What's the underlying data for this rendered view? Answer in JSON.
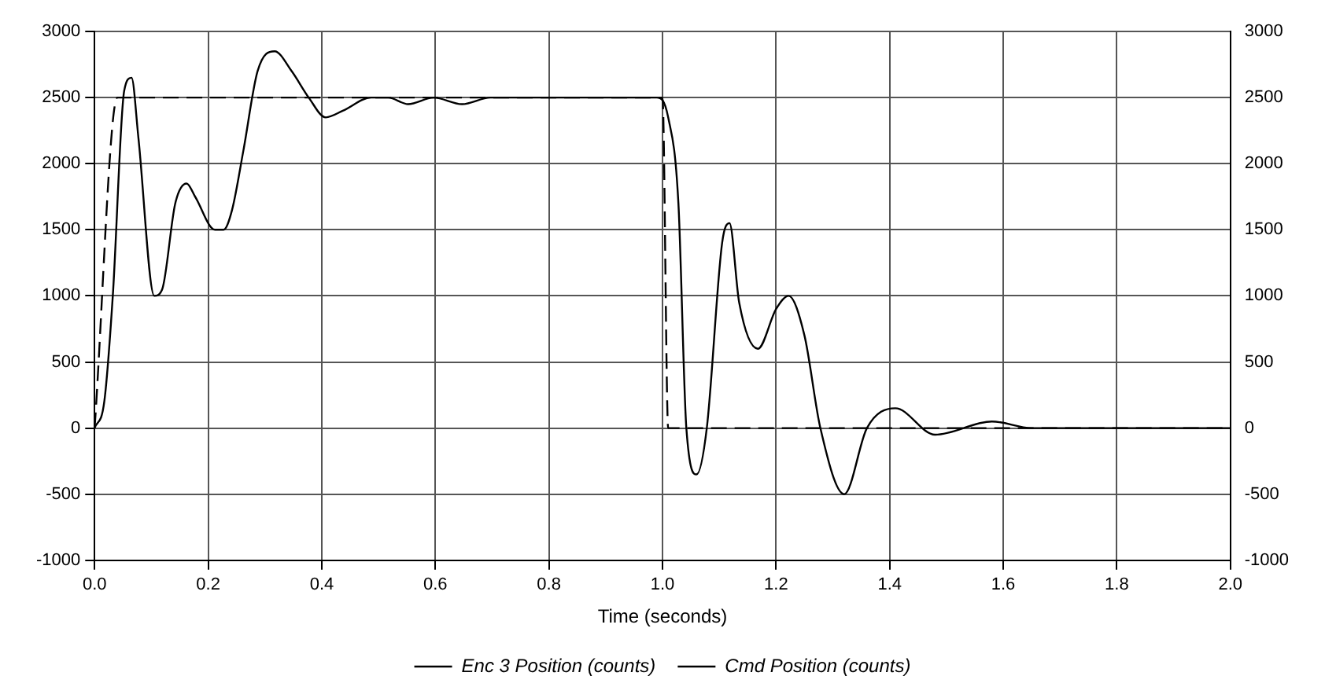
{
  "chart_data": {
    "type": "line",
    "xlabel": "Time (seconds)",
    "xlim": [
      0,
      2
    ],
    "xticks": [
      {
        "value": 0,
        "label": "0.0"
      },
      {
        "value": 0.2,
        "label": "0.2"
      },
      {
        "value": 0.4,
        "label": "0.4"
      },
      {
        "value": 0.6,
        "label": "0.6"
      },
      {
        "value": 0.8,
        "label": "0.8"
      },
      {
        "value": 1,
        "label": "1.0"
      },
      {
        "value": 1.2,
        "label": "1.2"
      },
      {
        "value": 1.4,
        "label": "1.4"
      },
      {
        "value": 1.6,
        "label": "1.6"
      },
      {
        "value": 1.8,
        "label": "1.8"
      },
      {
        "value": 2,
        "label": "2.0"
      }
    ],
    "ylim": [
      -1000,
      3000
    ],
    "yticks": [
      -1000,
      -500,
      0,
      500,
      1000,
      1500,
      2000,
      2500,
      3000
    ],
    "y2lim": [
      -1000,
      3000
    ],
    "y2ticks": [
      -1000,
      -500,
      0,
      500,
      1000,
      1500,
      2000,
      2500,
      3000
    ],
    "grid": true,
    "legend": "bottom",
    "marker": "none",
    "series": [
      {
        "name": "Enc 3 Position (counts)",
        "color": "#000000",
        "line_style": "solid",
        "x": [
          0,
          0.017,
          0.032,
          0.052,
          0.065,
          0.077,
          0.105,
          0.119,
          0.142,
          0.162,
          0.177,
          0.212,
          0.227,
          0.242,
          0.262,
          0.287,
          0.317,
          0.347,
          0.377,
          0.407,
          0.437,
          0.487,
          0.517,
          0.552,
          0.597,
          0.647,
          0.697,
          0.97,
          0.99,
          1.01,
          1.028,
          1.042,
          1.06,
          1.078,
          1.105,
          1.118,
          1.135,
          1.168,
          1.2,
          1.222,
          1.25,
          1.278,
          1.32,
          1.36,
          1.41,
          1.48,
          1.58,
          1.65,
          1.72,
          1.8,
          2.0
        ],
        "values": [
          0,
          200,
          1000,
          2550,
          2650,
          2200,
          1000,
          1050,
          1700,
          1850,
          1750,
          1500,
          1500,
          1650,
          2100,
          2700,
          2850,
          2700,
          2500,
          2350,
          2400,
          2500,
          2500,
          2450,
          2500,
          2450,
          2500,
          2500,
          2500,
          2350,
          1700,
          0,
          -350,
          0,
          1400,
          1550,
          950,
          600,
          900,
          1000,
          700,
          0,
          -500,
          0,
          150,
          -50,
          50,
          0,
          0,
          0,
          0
        ]
      },
      {
        "name": "Cmd Position (counts)",
        "color": "#000000",
        "line_style": "dashed",
        "x": [
          0,
          0.04,
          1.0,
          1.01,
          2.0
        ],
        "values": [
          0,
          2500,
          2500,
          0,
          0
        ]
      }
    ]
  }
}
